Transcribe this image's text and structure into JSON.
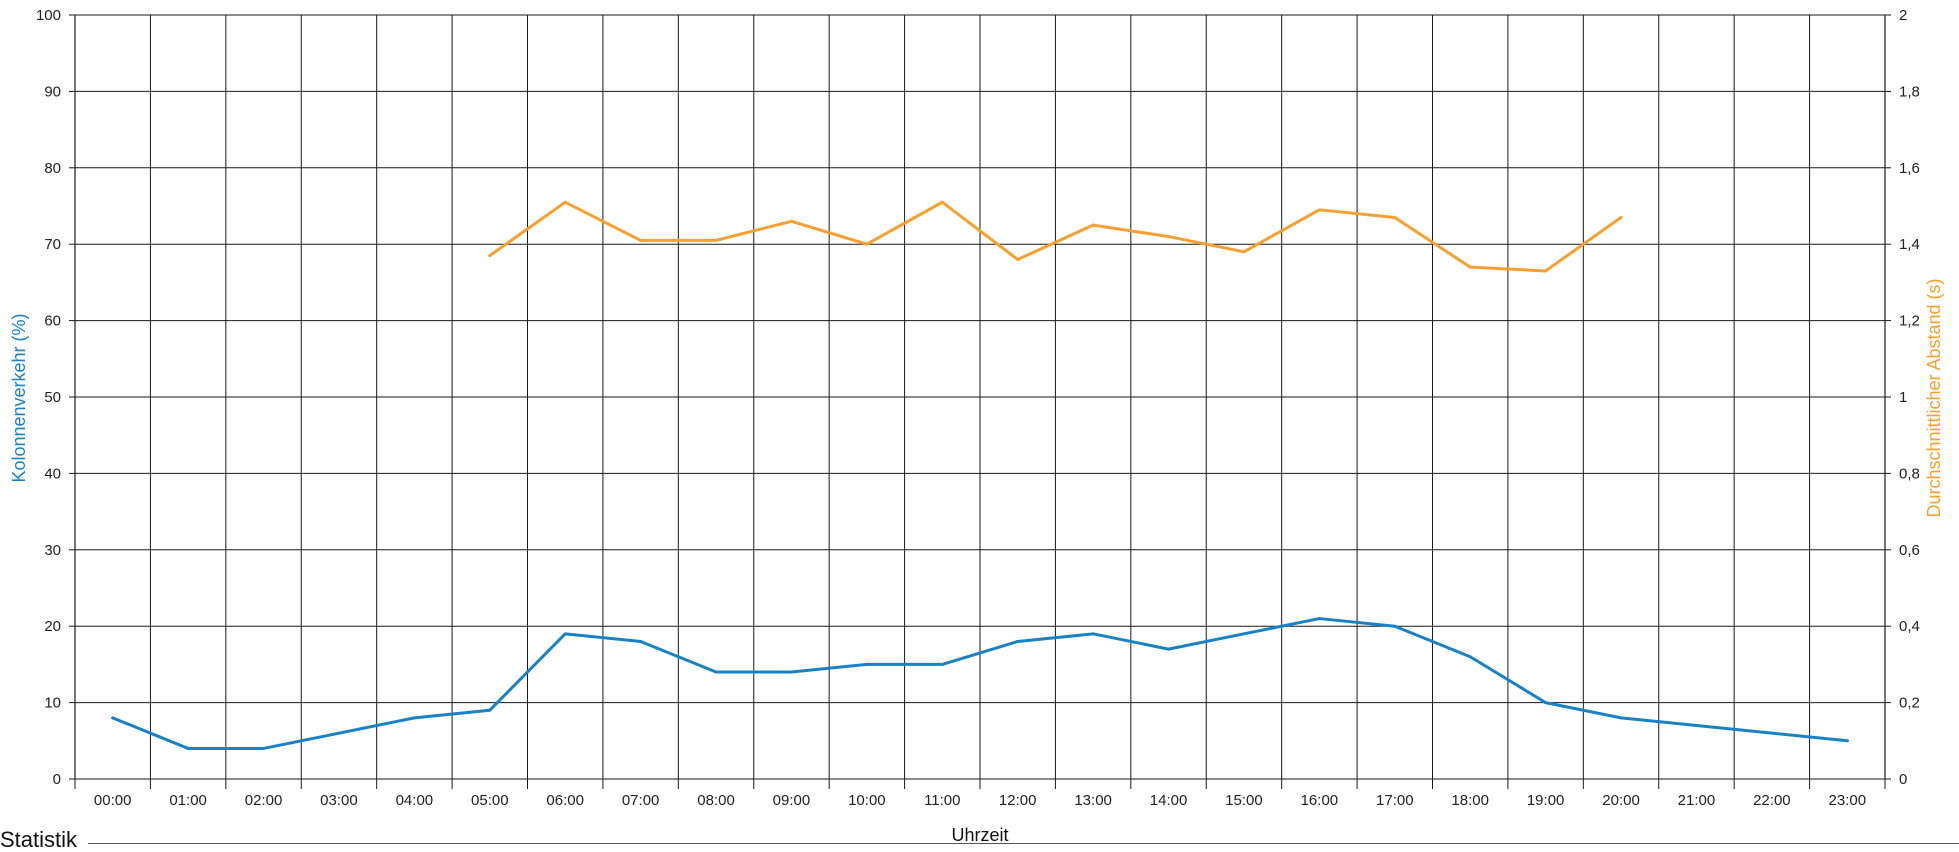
{
  "chart_data": {
    "type": "line",
    "categories": [
      "00:00",
      "01:00",
      "02:00",
      "03:00",
      "04:00",
      "05:00",
      "06:00",
      "07:00",
      "08:00",
      "09:00",
      "10:00",
      "11:00",
      "12:00",
      "13:00",
      "14:00",
      "15:00",
      "16:00",
      "17:00",
      "18:00",
      "19:00",
      "20:00",
      "21:00",
      "22:00",
      "23:00"
    ],
    "xlabel": "Uhrzeit",
    "ylabel_left": "Kolonnenverkehr (%)",
    "ylabel_right": "Durchschnittlicher Abstand (s)",
    "ylim_left": [
      0,
      100
    ],
    "ylim_right": [
      0,
      2
    ],
    "yticks_left": [
      "0",
      "10",
      "20",
      "30",
      "40",
      "50",
      "60",
      "70",
      "80",
      "90",
      "100"
    ],
    "yticks_right": [
      "0",
      "0,2",
      "0,4",
      "0,6",
      "0,8",
      "1",
      "1,2",
      "1,4",
      "1,6",
      "1,8",
      "2"
    ],
    "grid": true,
    "series": [
      {
        "axis": "left",
        "color": "#1a82c4",
        "values": [
          8,
          4,
          4,
          6,
          8,
          9,
          19,
          18,
          14,
          14,
          15,
          15,
          18,
          19,
          17,
          19,
          21,
          20,
          16,
          10,
          8,
          7,
          6,
          5
        ]
      },
      {
        "axis": "right",
        "color": "#f5a033",
        "values": [
          null,
          null,
          null,
          null,
          null,
          1.37,
          1.51,
          1.41,
          1.41,
          1.46,
          1.4,
          1.51,
          1.36,
          1.45,
          1.42,
          1.38,
          1.49,
          1.47,
          1.34,
          1.33,
          1.47,
          null,
          null,
          null
        ]
      }
    ]
  },
  "colors": {
    "left_axis_title": "#1a82c4",
    "right_axis_title": "#f5a033",
    "grid": "#1a1a1a"
  },
  "footer": {
    "section_label": "Statistik"
  }
}
